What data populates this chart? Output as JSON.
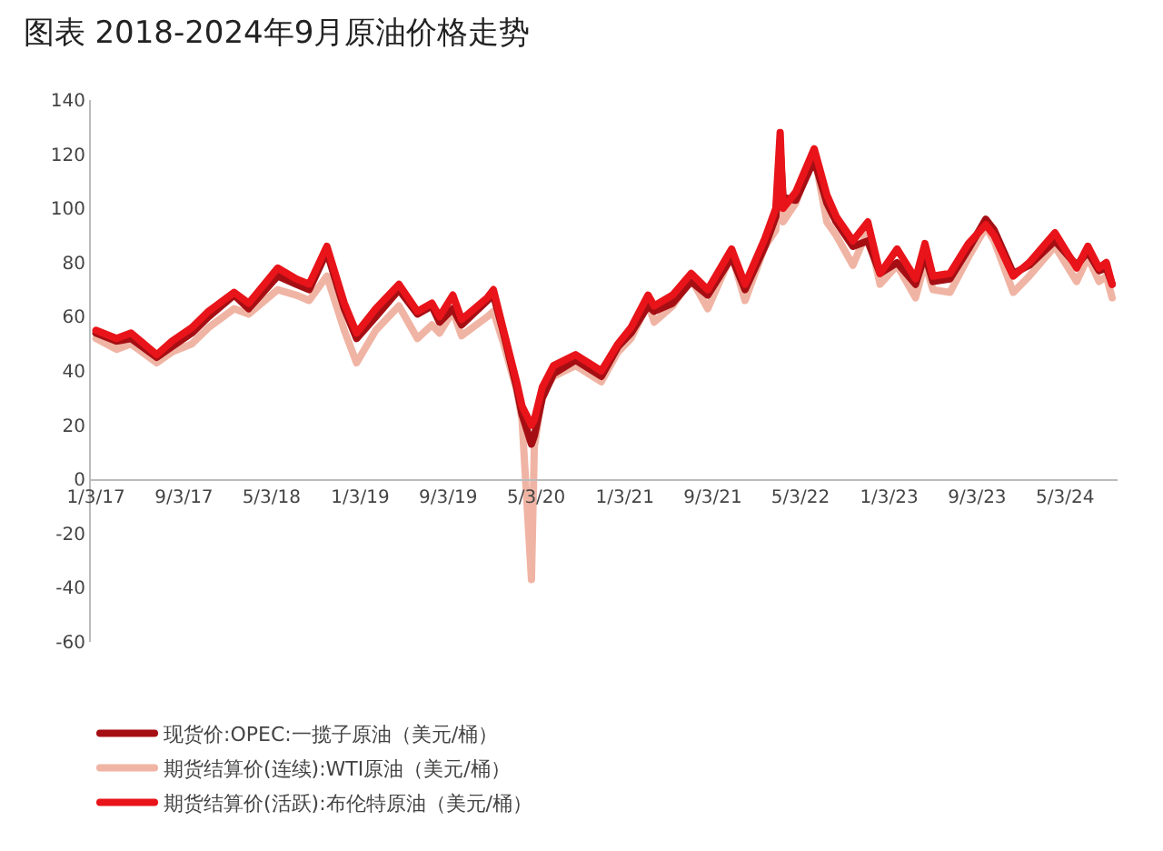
{
  "chart_data": {
    "type": "line",
    "title": "图表 2018-2024年9月原油价格走势",
    "x": [
      "2017-01-03",
      "2017-03-01",
      "2017-04-10",
      "2017-06-20",
      "2017-08-01",
      "2017-09-25",
      "2017-11-10",
      "2018-01-20",
      "2018-03-01",
      "2018-05-20",
      "2018-07-10",
      "2018-08-15",
      "2018-10-03",
      "2018-11-20",
      "2018-12-24",
      "2019-02-15",
      "2019-04-20",
      "2019-06-10",
      "2019-07-20",
      "2019-08-10",
      "2019-09-16",
      "2019-10-10",
      "2019-12-20",
      "2020-01-06",
      "2020-02-01",
      "2020-03-10",
      "2020-03-25",
      "2020-04-20",
      "2020-04-28",
      "2020-05-20",
      "2020-06-20",
      "2020-08-20",
      "2020-10-30",
      "2020-12-15",
      "2021-01-20",
      "2021-03-08",
      "2021-03-25",
      "2021-05-15",
      "2021-07-05",
      "2021-08-20",
      "2021-10-25",
      "2021-12-01",
      "2022-01-25",
      "2022-02-24",
      "2022-03-08",
      "2022-03-16",
      "2022-04-20",
      "2022-06-10",
      "2022-07-15",
      "2022-08-10",
      "2022-09-25",
      "2022-11-05",
      "2022-12-09",
      "2023-01-25",
      "2023-03-17",
      "2023-04-12",
      "2023-05-04",
      "2023-06-20",
      "2023-08-10",
      "2023-09-27",
      "2023-10-20",
      "2023-12-12",
      "2024-01-25",
      "2024-04-05",
      "2024-06-04",
      "2024-07-05",
      "2024-08-05",
      "2024-08-25",
      "2024-09-10"
    ],
    "ylim": [
      -60,
      140
    ],
    "yticks": [
      -60,
      -40,
      -20,
      0,
      20,
      40,
      60,
      80,
      100,
      120,
      140
    ],
    "xlim": [
      "2016-12-20",
      "2024-09-25"
    ],
    "xticks": [
      {
        "value": "2017-01-03",
        "label": "1/3/17"
      },
      {
        "value": "2017-09-03",
        "label": "9/3/17"
      },
      {
        "value": "2018-05-03",
        "label": "5/3/18"
      },
      {
        "value": "2019-01-03",
        "label": "1/3/19"
      },
      {
        "value": "2019-09-03",
        "label": "9/3/19"
      },
      {
        "value": "2020-05-03",
        "label": "5/3/20"
      },
      {
        "value": "2021-01-03",
        "label": "1/3/21"
      },
      {
        "value": "2021-09-03",
        "label": "9/3/21"
      },
      {
        "value": "2022-05-03",
        "label": "5/3/22"
      },
      {
        "value": "2023-01-03",
        "label": "1/3/23"
      },
      {
        "value": "2023-09-03",
        "label": "9/3/23"
      },
      {
        "value": "2024-05-03",
        "label": "5/3/24"
      }
    ],
    "legend": "bottom",
    "marker": "none",
    "line_style": "solid",
    "series": [
      {
        "name": "期货结算价(连续):WTI原油（美元/桶）",
        "color": "#f0b4a4",
        "values": [
          52,
          48,
          50,
          43,
          47,
          50,
          56,
          63,
          61,
          70,
          68,
          66,
          75,
          55,
          43,
          55,
          64,
          52,
          57,
          54,
          62,
          53,
          60,
          62,
          51,
          33,
          22,
          -37,
          12,
          32,
          38,
          42,
          36,
          47,
          52,
          65,
          58,
          64,
          74,
          63,
          83,
          66,
          86,
          92,
          123,
          95,
          102,
          120,
          95,
          90,
          79,
          92,
          72,
          79,
          67,
          80,
          70,
          69,
          82,
          93,
          88,
          69,
          75,
          86,
          73,
          82,
          73,
          75,
          67
        ]
      },
      {
        "name": "现货价:OPEC:一揽子原油（美元/桶）",
        "color": "#a50f14",
        "values": [
          54,
          51,
          52,
          45,
          49,
          54,
          60,
          68,
          63,
          75,
          72,
          70,
          84,
          63,
          52,
          60,
          70,
          61,
          64,
          58,
          63,
          57,
          66,
          68,
          55,
          34,
          24,
          13,
          16,
          30,
          39,
          44,
          38,
          49,
          54,
          64,
          62,
          65,
          73,
          68,
          82,
          70,
          86,
          97,
          122,
          104,
          103,
          118,
          102,
          95,
          86,
          88,
          76,
          80,
          72,
          83,
          73,
          74,
          85,
          96,
          92,
          76,
          79,
          88,
          79,
          84,
          77,
          78,
          72
        ]
      },
      {
        "name": "期货结算价(活跃):布伦特原油（美元/桶）",
        "color": "#e8141a",
        "values": [
          55,
          52,
          54,
          46,
          51,
          56,
          62,
          69,
          65,
          78,
          74,
          72,
          86,
          65,
          54,
          63,
          72,
          62,
          65,
          60,
          68,
          59,
          67,
          70,
          56,
          36,
          27,
          20,
          22,
          34,
          42,
          46,
          40,
          50,
          56,
          68,
          64,
          68,
          76,
          70,
          85,
          72,
          89,
          100,
          128,
          100,
          106,
          122,
          105,
          97,
          88,
          95,
          76,
          85,
          74,
          87,
          75,
          76,
          87,
          94,
          90,
          75,
          80,
          91,
          78,
          86,
          78,
          80,
          72
        ]
      }
    ]
  }
}
